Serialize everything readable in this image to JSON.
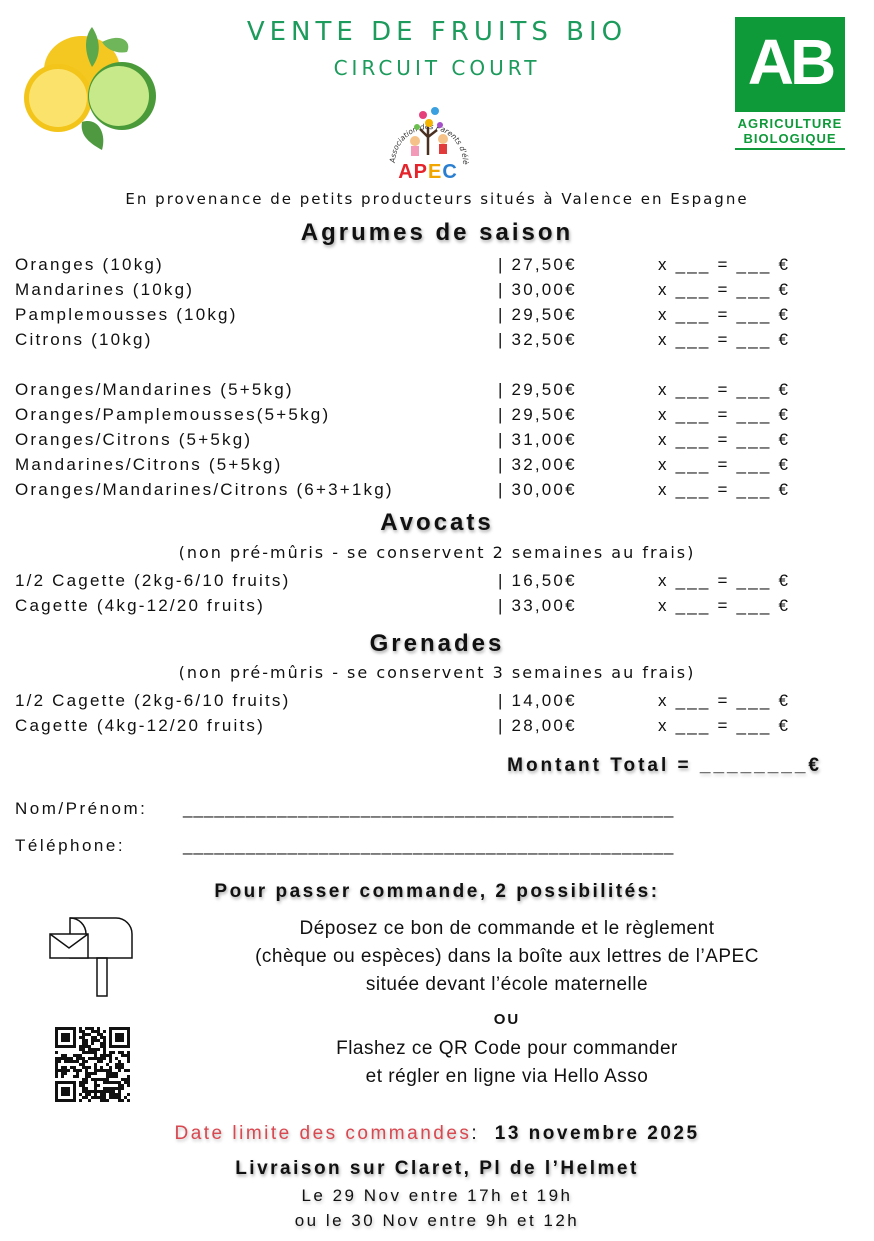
{
  "header": {
    "title": "VENTE DE FRUITS BIO",
    "subtitle": "CIRCUIT COURT",
    "apec_logo_text": "Association des Parents d'élèves de Claret",
    "apec_logo_letters": "APEC",
    "ab_logo_letters": "AB",
    "ab_logo_line1": "AGRICULTURE",
    "ab_logo_line2": "BIOLOGIQUE",
    "origin": "En provenance de petits producteurs situés à Valence en Espagne",
    "colors": {
      "green": "#1c9b5c",
      "ab_green": "#0f9a3a",
      "red": "#d9474f"
    }
  },
  "order_suffix": "x ___ = ___ €",
  "sections": [
    {
      "title": "Agrumes de saison",
      "items": [
        {
          "name": "Oranges (10kg)",
          "price": "| 27,50€"
        },
        {
          "name": "Mandarines (10kg)",
          "price": "| 30,00€"
        },
        {
          "name": "Pamplemousses (10kg)",
          "price": "| 29,50€"
        },
        {
          "name": "Citrons (10kg)",
          "price": "| 32,50€"
        },
        {
          "name": "Oranges/Mandarines (5+5kg)",
          "price": "| 29,50€"
        },
        {
          "name": "Oranges/Pamplemousses(5+5kg)",
          "price": "| 29,50€"
        },
        {
          "name": "Oranges/Citrons (5+5kg)",
          "price": "| 31,00€"
        },
        {
          "name": "Mandarines/Citrons (5+5kg)",
          "price": "| 32,00€"
        },
        {
          "name": "Oranges/Mandarines/Citrons (6+3+1kg)",
          "price": "| 30,00€"
        }
      ]
    },
    {
      "title": "Avocats",
      "note": "(non pré-mûris - se conservent 2 semaines au frais)",
      "items": [
        {
          "name": "1/2 Cagette (2kg-6/10 fruits)",
          "price": "| 16,50€"
        },
        {
          "name": "Cagette (4kg-12/20 fruits)",
          "price": "| 33,00€"
        }
      ]
    },
    {
      "title": "Grenades",
      "note": "(non pré-mûris - se conservent 3 semaines au frais)",
      "items": [
        {
          "name": "1/2 Cagette (2kg-6/10 fruits)",
          "price": "| 14,00€"
        },
        {
          "name": "Cagette (4kg-12/20 fruits)",
          "price": "| 28,00€"
        }
      ]
    }
  ],
  "total": "Montant Total = ________€",
  "form": {
    "name_label": "Nom/Prénom:",
    "name_blank": "_______________________________________________",
    "phone_label": "Téléphone:",
    "phone_blank": "_______________________________________________"
  },
  "ordering": {
    "heading": "Pour passer commande, 2 possibilités:",
    "option1": [
      "Déposez ce bon de commande et le règlement",
      "(chèque ou espèces) dans la boîte aux lettres de l’APEC",
      "située devant l’école maternelle"
    ],
    "or": "OU",
    "option2": [
      "Flashez ce QR Code pour commander",
      "et régler en ligne via Hello Asso"
    ]
  },
  "deadline": {
    "label": "Date limite des commandes",
    "sep": ":",
    "date": "13 novembre 2025"
  },
  "delivery": {
    "title": "Livraison sur Claret, Pl de l’Helmet",
    "slot1": "Le 29 Nov entre 17h et 19h",
    "slot2": "ou le 30 Nov entre 9h et 12h"
  }
}
